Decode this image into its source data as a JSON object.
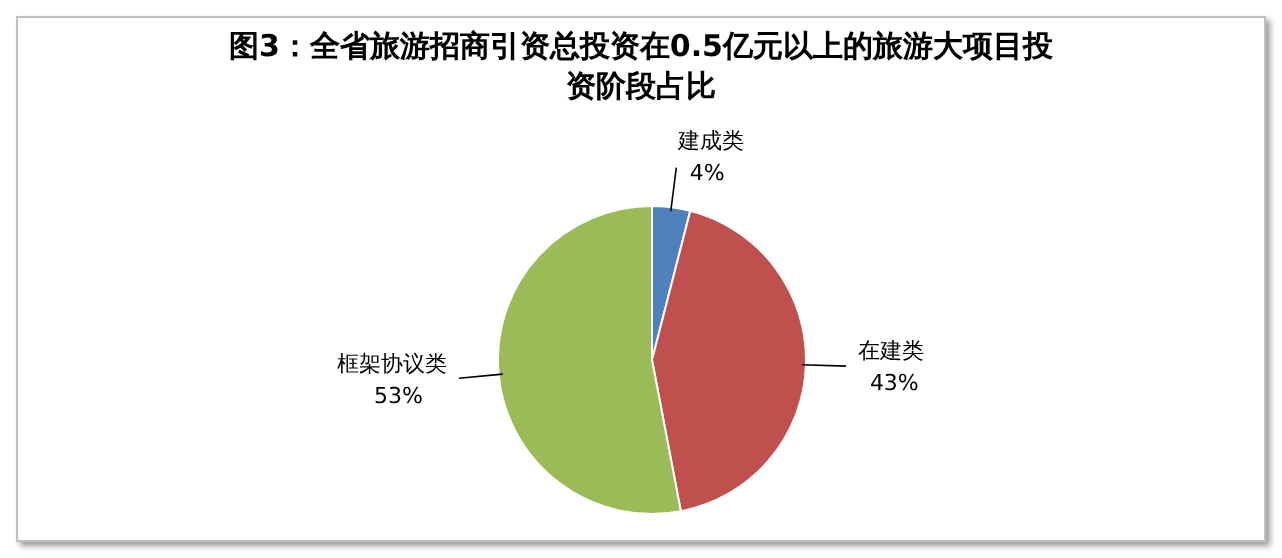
{
  "chart_data": {
    "type": "pie",
    "title": "图3：全省旅游招商引资总投资在0.5亿元以上的旅游大项目投资阶段占比",
    "categories": [
      "建成类",
      "在建类",
      "框架协议类"
    ],
    "values": [
      4,
      43,
      53
    ],
    "colors": [
      "#4f81bd",
      "#c0504d",
      "#9bbb59"
    ],
    "value_labels": [
      "4%",
      "43%",
      "53%"
    ]
  }
}
